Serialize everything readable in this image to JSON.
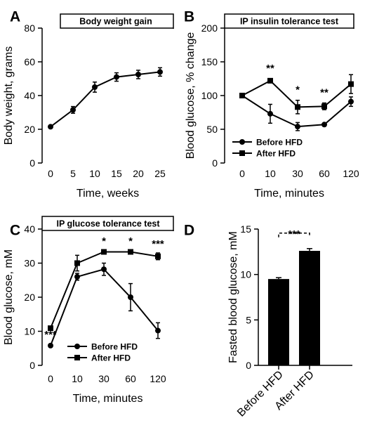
{
  "chart_data": [
    {
      "panel": "A",
      "type": "line",
      "title": "Body weight gain",
      "xlabel": "Time, weeks",
      "ylabel": "Body weight, grams",
      "categories": [
        "0",
        "5",
        "10",
        "15",
        "20",
        "25"
      ],
      "ylim": [
        0,
        80
      ],
      "yticks": [
        "0",
        "20",
        "40",
        "60",
        "80"
      ],
      "series": [
        {
          "marker": "circle",
          "values": [
            21.5,
            31.5,
            45,
            51,
            52.5,
            54
          ],
          "errors": [
            0.5,
            2,
            3,
            2.5,
            2.5,
            2.5
          ]
        }
      ],
      "significance": []
    },
    {
      "panel": "B",
      "type": "line",
      "title": "IP insulin tolerance test",
      "xlabel": "Time, minutes",
      "ylabel": "Blood glucose, % change",
      "categories": [
        "0",
        "10",
        "30",
        "60",
        "120"
      ],
      "ylim": [
        0,
        200
      ],
      "yticks": [
        "0",
        "50",
        "100",
        "150",
        "200"
      ],
      "series": [
        {
          "name": "Before HFD",
          "marker": "circle",
          "values": [
            100,
            73,
            54,
            57,
            91
          ],
          "errors": [
            2,
            14,
            6,
            2,
            7
          ]
        },
        {
          "name": "After HFD",
          "marker": "square",
          "values": [
            100,
            122,
            83,
            84,
            117
          ],
          "errors": [
            2,
            3,
            10,
            5,
            14
          ]
        }
      ],
      "legend": "bottom-center",
      "significance": [
        {
          "category": "10",
          "label": "**"
        },
        {
          "category": "30",
          "label": "*"
        },
        {
          "category": "60",
          "label": "**"
        }
      ]
    },
    {
      "panel": "C",
      "type": "line",
      "title": "IP glucose tolerance test",
      "xlabel": "Time, minutes",
      "ylabel": "Blood glucose, mM",
      "categories": [
        "0",
        "10",
        "30",
        "60",
        "120"
      ],
      "ylim": [
        0,
        40
      ],
      "yticks": [
        "0",
        "10",
        "20",
        "30",
        "40"
      ],
      "series": [
        {
          "name": "Before HFD",
          "marker": "circle",
          "values": [
            5.8,
            26,
            28.2,
            20,
            10.2
          ],
          "errors": [
            0.3,
            1,
            1.8,
            4,
            2.3
          ]
        },
        {
          "name": "After HFD",
          "marker": "square",
          "values": [
            10.9,
            30,
            33.3,
            33.3,
            32
          ],
          "errors": [
            0.6,
            2.3,
            0.5,
            0.5,
            1
          ]
        }
      ],
      "legend": "bottom-center",
      "significance": [
        {
          "category": "0",
          "label": "***"
        },
        {
          "category": "30",
          "label": "*"
        },
        {
          "category": "60",
          "label": "*"
        },
        {
          "category": "120",
          "label": "***"
        }
      ]
    },
    {
      "panel": "D",
      "type": "bar",
      "ylabel": "Fasted blood glucose, mM",
      "categories": [
        "Before HFD",
        "After HFD"
      ],
      "values": [
        9.5,
        12.6
      ],
      "errors": [
        0.15,
        0.25
      ],
      "ylim": [
        0,
        15
      ],
      "yticks": [
        "0",
        "5",
        "10",
        "15"
      ],
      "significance": [
        {
          "between": [
            "Before HFD",
            "After HFD"
          ],
          "label": "***"
        }
      ]
    }
  ],
  "colors": {
    "ink": "#000000",
    "background": "#ffffff",
    "header_fill": "#ffffff"
  }
}
